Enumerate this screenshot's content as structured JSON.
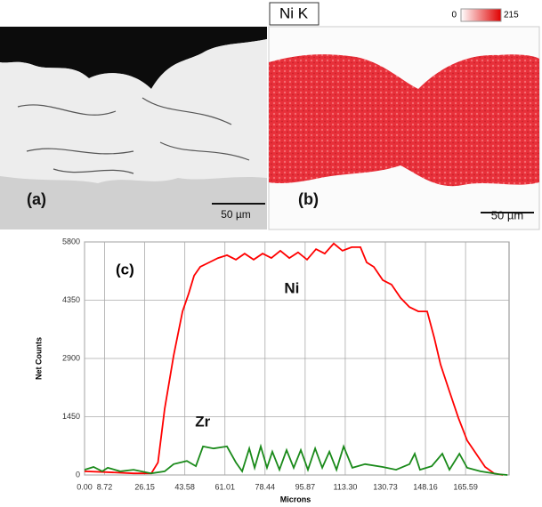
{
  "panels": {
    "a": {
      "label": "(a)",
      "scale_bar": "50 µm"
    },
    "b": {
      "label": "(b)",
      "scale_bar": "50 µm",
      "map_title": "Ni K",
      "colorbar": {
        "min": 0,
        "max": 215
      }
    }
  },
  "chart_data": {
    "type": "line",
    "panel_label": "(c)",
    "xlabel": "Microns",
    "ylabel": "Net Counts",
    "xlim": [
      0,
      184.5
    ],
    "ylim": [
      0,
      5800
    ],
    "xticks": [
      {
        "value": 0,
        "label": "0.00"
      },
      8.72,
      26.15,
      43.58,
      61.01,
      78.44,
      95.87,
      {
        "value": 113.3,
        "label": "113.30"
      },
      130.73,
      148.16,
      165.59
    ],
    "yticks": [
      0,
      1450,
      2900,
      4350,
      5800
    ],
    "grid": true,
    "series": [
      {
        "name": "Ni",
        "color": "#ff0000",
        "x": [
          0,
          9.7,
          21.3,
          29,
          31.9,
          34.8,
          38.7,
          42.6,
          45.3,
          47.6,
          50.3,
          54.2,
          58,
          61.9,
          65.8,
          69.6,
          73.5,
          77.4,
          81.2,
          85.1,
          89,
          92.8,
          96.7,
          100.6,
          104.4,
          108.3,
          112.1,
          116.1,
          119.9,
          122.6,
          125.7,
          129.6,
          133.4,
          137.3,
          141.2,
          145.1,
          148.9,
          152,
          154.7,
          158.6,
          162.5,
          166.3,
          170.2,
          174.1,
          178,
          181.8
        ],
        "values": [
          90,
          70,
          40,
          40,
          310,
          1640,
          2970,
          4070,
          4520,
          4960,
          5180,
          5290,
          5400,
          5470,
          5360,
          5510,
          5360,
          5510,
          5400,
          5580,
          5400,
          5540,
          5360,
          5620,
          5510,
          5760,
          5580,
          5670,
          5670,
          5290,
          5180,
          4850,
          4740,
          4410,
          4180,
          4070,
          4070,
          3410,
          2750,
          2080,
          1420,
          860,
          530,
          200,
          40,
          0
        ]
      },
      {
        "name": "Zr",
        "color": "#1a8a1a",
        "x": [
          0,
          3.9,
          7.7,
          10.1,
          15.5,
          21.3,
          29,
          34.8,
          38.7,
          44.5,
          48.4,
          51.5,
          56.1,
          61.9,
          65.8,
          68.5,
          71.6,
          73.9,
          76.6,
          79.3,
          81.6,
          84.7,
          87.8,
          90.9,
          94,
          97.1,
          100.2,
          103.3,
          106.4,
          109.5,
          112.6,
          116.4,
          121.9,
          129.6,
          135.4,
          141.2,
          143.5,
          145.8,
          150.9,
          155.5,
          158.6,
          162.9,
          166.3,
          172.1,
          179.9,
          183.8
        ],
        "values": [
          130,
          200,
          90,
          180,
          90,
          130,
          40,
          90,
          270,
          350,
          220,
          710,
          660,
          710,
          310,
          90,
          660,
          180,
          710,
          180,
          580,
          130,
          620,
          180,
          620,
          130,
          660,
          180,
          580,
          130,
          710,
          180,
          270,
          200,
          130,
          270,
          530,
          130,
          220,
          530,
          130,
          530,
          180,
          90,
          20,
          0
        ]
      }
    ]
  }
}
